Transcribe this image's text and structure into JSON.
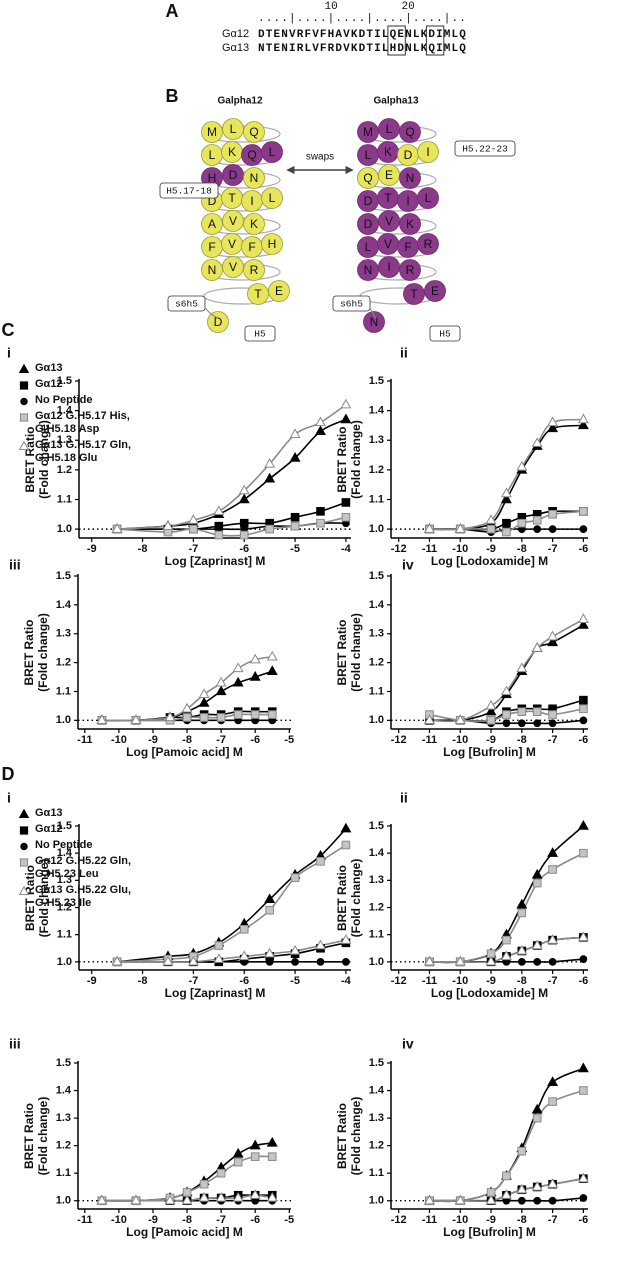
{
  "panel_a": {
    "label": "A",
    "ruler": "....|....|....|....|....|..",
    "ruler_labels": [
      "10",
      "20"
    ],
    "rows": [
      {
        "name": "Gα12",
        "sequence": "DTENVRFVFHAVKDTILQENLKDIMLQ"
      },
      {
        "name": "Gα13",
        "sequence": "NTENIRLVFRDVKDTILHDNLKQIMLQ"
      }
    ]
  },
  "panel_b": {
    "label": "B",
    "swaps": "swaps",
    "tags": [
      "H5.17-18",
      "H5.22-23",
      "s6h5",
      "s6h5",
      "H5",
      "H5"
    ],
    "wheels": [
      {
        "title": "Galpha12",
        "rows": [
          [
            "M",
            "L",
            "Q"
          ],
          [
            "L",
            "K",
            "Q",
            "L"
          ],
          [
            "H",
            "D",
            "N"
          ],
          [
            "D",
            "T",
            "I",
            "L"
          ],
          [
            "A",
            "V",
            "K"
          ],
          [
            "F",
            "V",
            "F",
            "H"
          ],
          [
            "N",
            "V",
            "R"
          ],
          [
            "T",
            "E"
          ],
          [
            "D"
          ]
        ]
      },
      {
        "title": "Galpha13",
        "rows": [
          [
            "M",
            "L",
            "Q"
          ],
          [
            "L",
            "K",
            "D",
            "I"
          ],
          [
            "Q",
            "E",
            "N"
          ],
          [
            "D",
            "T",
            "I",
            "L"
          ],
          [
            "D",
            "V",
            "K"
          ],
          [
            "L",
            "V",
            "F",
            "R"
          ],
          [
            "N",
            "I",
            "R"
          ],
          [
            "T",
            "E"
          ],
          [
            "N"
          ]
        ]
      }
    ]
  },
  "panel_c": {
    "label": "C"
  },
  "panel_d": {
    "label": "D"
  },
  "chart_data": [
    {
      "type": "line",
      "label": "i",
      "ylabel": [
        "BRET Ratio",
        "(Fold change)"
      ],
      "xlabel": "Log [Zaprinast] M",
      "x": [
        -8.5,
        -7.5,
        -7,
        -6.5,
        -6,
        -5.5,
        -5,
        -4.5,
        -4
      ],
      "xlim": [
        -9.25,
        -3.9
      ],
      "xticks": [
        -9,
        -8,
        -7,
        -6,
        -5,
        -4
      ],
      "ylim": [
        0.97,
        1.5
      ],
      "yticks": [
        {
          "value": 1,
          "label": "1.0"
        },
        1.1,
        1.2,
        1.3,
        1.4,
        1.5
      ],
      "hline": 1,
      "legend": "upper-left",
      "series": [
        {
          "name": "Gα13",
          "marker": "triangle",
          "color": "#000000",
          "fill": "#000000",
          "values": [
            1.0,
            1.01,
            1.02,
            1.05,
            1.1,
            1.17,
            1.24,
            1.33,
            1.37
          ]
        },
        {
          "name": "Gα12",
          "marker": "square",
          "color": "#000000",
          "fill": "#000000",
          "values": [
            1.0,
            1.0,
            1.0,
            1.01,
            1.02,
            1.02,
            1.04,
            1.06,
            1.09
          ]
        },
        {
          "name": "No Peptide",
          "marker": "circle",
          "color": "#000000",
          "fill": "#000000",
          "values": [
            1.0,
            1.0,
            1.0,
            1.0,
            1.0,
            1.01,
            1.01,
            1.02,
            1.02
          ]
        },
        {
          "name": "Gα12 G.H5.17 His, G.H5.18 Asp",
          "marker": "square",
          "color": "#8a8a8a",
          "fill": "#c4c4c4",
          "values": [
            1.0,
            0.99,
            1.0,
            0.98,
            0.98,
            1.0,
            1.01,
            1.02,
            1.04
          ]
        },
        {
          "name": "Gα13 G.H5.17 Gln, G.H5.18 Glu",
          "marker": "triangle",
          "color": "#8a8a8a",
          "fill": "#ffffff",
          "values": [
            1.0,
            1.01,
            1.03,
            1.06,
            1.13,
            1.22,
            1.32,
            1.36,
            1.42
          ]
        }
      ]
    },
    {
      "type": "line",
      "label": "ii",
      "ylabel": [
        "BRET Ratio",
        "(Fold change)"
      ],
      "xlabel": "Log [Lodoxamide] M",
      "x": [
        -11,
        -10,
        -9,
        -8.5,
        -8,
        -7.5,
        -7,
        -6
      ],
      "xlim": [
        -12.25,
        -5.85
      ],
      "xticks": [
        -12,
        -11,
        -10,
        -9,
        -8,
        -7,
        -6
      ],
      "ylim": [
        0.97,
        1.5
      ],
      "yticks": [
        {
          "value": 1,
          "label": "1.0"
        },
        1.1,
        1.2,
        1.3,
        1.4,
        1.5
      ],
      "hline": 1,
      "series": [
        {
          "marker": "triangle",
          "color": "#000000",
          "fill": "#000000",
          "values": [
            1.0,
            1.0,
            1.02,
            1.1,
            1.2,
            1.28,
            1.34,
            1.35
          ]
        },
        {
          "marker": "square",
          "color": "#000000",
          "fill": "#000000",
          "values": [
            1.0,
            1.0,
            1.0,
            1.02,
            1.04,
            1.05,
            1.06,
            1.06
          ]
        },
        {
          "marker": "circle",
          "color": "#000000",
          "fill": "#000000",
          "values": [
            1.0,
            1.0,
            0.99,
            1.0,
            1.0,
            1.0,
            1.0,
            1.0
          ]
        },
        {
          "marker": "square",
          "color": "#8a8a8a",
          "fill": "#c4c4c4",
          "values": [
            1.0,
            1.0,
            1.0,
            0.99,
            1.02,
            1.03,
            1.05,
            1.06
          ]
        },
        {
          "marker": "triangle",
          "color": "#8a8a8a",
          "fill": "#ffffff",
          "values": [
            1.0,
            1.0,
            1.03,
            1.12,
            1.21,
            1.29,
            1.36,
            1.37
          ]
        }
      ]
    },
    {
      "type": "line",
      "label": "iii",
      "ylabel": [
        "BRET Ratio",
        "(Fold change)"
      ],
      "xlabel": "Log [Pamoic acid] M",
      "x": [
        -10.5,
        -9.5,
        -8.5,
        -8,
        -7.5,
        -7,
        -6.5,
        -6,
        -5.5
      ],
      "xlim": [
        -11.2,
        -4.95
      ],
      "xticks": [
        -11,
        -10,
        -9,
        -8,
        -7,
        -6,
        -5
      ],
      "ylim": [
        0.97,
        1.5
      ],
      "yticks": [
        {
          "value": 1,
          "label": "1.0"
        },
        1.1,
        1.2,
        1.3,
        1.4,
        1.5
      ],
      "hline": 1,
      "series": [
        {
          "marker": "triangle",
          "color": "#000000",
          "fill": "#000000",
          "values": [
            1.0,
            1.0,
            1.01,
            1.03,
            1.06,
            1.1,
            1.13,
            1.15,
            1.17
          ]
        },
        {
          "marker": "square",
          "color": "#000000",
          "fill": "#000000",
          "values": [
            1.0,
            1.0,
            1.01,
            1.01,
            1.02,
            1.02,
            1.03,
            1.03,
            1.03
          ]
        },
        {
          "marker": "circle",
          "color": "#000000",
          "fill": "#000000",
          "values": [
            1.0,
            1.0,
            1.0,
            1.0,
            1.0,
            1.0,
            1.0,
            1.0,
            1.0
          ]
        },
        {
          "marker": "square",
          "color": "#8a8a8a",
          "fill": "#c4c4c4",
          "values": [
            1.0,
            1.0,
            1.0,
            1.01,
            1.01,
            1.01,
            1.02,
            1.02,
            1.02
          ]
        },
        {
          "marker": "triangle",
          "color": "#8a8a8a",
          "fill": "#ffffff",
          "values": [
            1.0,
            1.0,
            1.01,
            1.04,
            1.09,
            1.13,
            1.18,
            1.21,
            1.22
          ]
        }
      ]
    },
    {
      "type": "line",
      "label": "iv",
      "ylabel": [
        "BRET Ratio",
        "(Fold change)"
      ],
      "xlabel": "Log [Bufrolin] M",
      "x": [
        -11,
        -10,
        -9,
        -8.5,
        -8,
        -7.5,
        -7,
        -6
      ],
      "xlim": [
        -12.25,
        -5.85
      ],
      "xticks": [
        -12,
        -11,
        -10,
        -9,
        -8,
        -7,
        -6
      ],
      "ylim": [
        0.97,
        1.5
      ],
      "yticks": [
        {
          "value": 1,
          "label": "1.0"
        },
        1.1,
        1.2,
        1.3,
        1.4,
        1.5
      ],
      "hline": 1,
      "series": [
        {
          "marker": "triangle",
          "color": "#000000",
          "fill": "#000000",
          "values": [
            1.0,
            1.0,
            1.03,
            1.09,
            1.17,
            1.25,
            1.27,
            1.33
          ]
        },
        {
          "marker": "square",
          "color": "#000000",
          "fill": "#000000",
          "values": [
            1.0,
            1.0,
            1.0,
            1.03,
            1.04,
            1.04,
            1.04,
            1.07
          ]
        },
        {
          "marker": "circle",
          "color": "#000000",
          "fill": "#000000",
          "values": [
            1.0,
            1.0,
            0.99,
            0.99,
            0.99,
            0.99,
            0.99,
            1.0
          ]
        },
        {
          "marker": "square",
          "color": "#8a8a8a",
          "fill": "#c4c4c4",
          "values": [
            1.02,
            1.0,
            1.0,
            1.02,
            1.03,
            1.03,
            1.02,
            1.04
          ]
        },
        {
          "marker": "triangle",
          "color": "#8a8a8a",
          "fill": "#ffffff",
          "values": [
            1.0,
            1.0,
            1.05,
            1.1,
            1.18,
            1.25,
            1.29,
            1.35
          ]
        }
      ]
    },
    {
      "type": "line",
      "label": "i",
      "ylabel": [
        "BRET Ratio",
        "(Fold change)"
      ],
      "xlabel": "Log [Zaprinast] M",
      "x": [
        -8.5,
        -7.5,
        -7,
        -6.5,
        -6,
        -5.5,
        -5,
        -4.5,
        -4
      ],
      "xlim": [
        -9.25,
        -3.9
      ],
      "xticks": [
        -9,
        -8,
        -7,
        -6,
        -5,
        -4
      ],
      "ylim": [
        0.97,
        1.5
      ],
      "yticks": [
        {
          "value": 1,
          "label": "1.0"
        },
        1.1,
        1.2,
        1.3,
        1.4,
        1.5
      ],
      "hline": 1,
      "legend": "upper-left",
      "series": [
        {
          "name": "Gα13",
          "marker": "triangle",
          "color": "#000000",
          "fill": "#000000",
          "values": [
            1.0,
            1.02,
            1.03,
            1.07,
            1.14,
            1.23,
            1.32,
            1.39,
            1.49
          ]
        },
        {
          "name": "Gα12",
          "marker": "square",
          "color": "#000000",
          "fill": "#000000",
          "values": [
            1.0,
            1.0,
            1.0,
            1.0,
            1.01,
            1.02,
            1.03,
            1.05,
            1.07
          ]
        },
        {
          "name": "No Peptide",
          "marker": "circle",
          "color": "#000000",
          "fill": "#000000",
          "values": [
            1.0,
            1.0,
            1.0,
            1.0,
            1.0,
            1.0,
            1.0,
            1.0,
            1.0
          ]
        },
        {
          "name": "Gα12 G.H5.22 Gln, G.H5.23 Leu",
          "marker": "square",
          "color": "#8a8a8a",
          "fill": "#c4c4c4",
          "values": [
            1.0,
            1.01,
            1.02,
            1.06,
            1.12,
            1.19,
            1.31,
            1.37,
            1.43
          ]
        },
        {
          "name": "Gα13 G.H5.22 Glu, G.H5.23 Ile",
          "marker": "triangle",
          "color": "#8a8a8a",
          "fill": "#ffffff",
          "values": [
            1.0,
            1.0,
            1.0,
            1.01,
            1.02,
            1.03,
            1.04,
            1.06,
            1.08
          ]
        }
      ]
    },
    {
      "type": "line",
      "label": "ii",
      "ylabel": [
        "BRET Ratio",
        "(Fold change)"
      ],
      "xlabel": "Log [Lodoxamide] M",
      "x": [
        -11,
        -10,
        -9,
        -8.5,
        -8,
        -7.5,
        -7,
        -6
      ],
      "xlim": [
        -12.25,
        -5.85
      ],
      "xticks": [
        -12,
        -11,
        -10,
        -9,
        -8,
        -7,
        -6
      ],
      "ylim": [
        0.97,
        1.5
      ],
      "yticks": [
        {
          "value": 1,
          "label": "1.0"
        },
        1.1,
        1.2,
        1.3,
        1.4,
        1.5
      ],
      "hline": 1,
      "series": [
        {
          "marker": "triangle",
          "color": "#000000",
          "fill": "#000000",
          "values": [
            1.0,
            1.0,
            1.03,
            1.1,
            1.21,
            1.32,
            1.4,
            1.5
          ]
        },
        {
          "marker": "square",
          "color": "#000000",
          "fill": "#000000",
          "values": [
            1.0,
            1.0,
            1.0,
            1.02,
            1.04,
            1.06,
            1.08,
            1.09
          ]
        },
        {
          "marker": "circle",
          "color": "#000000",
          "fill": "#000000",
          "values": [
            1.0,
            1.0,
            1.0,
            1.0,
            1.0,
            1.0,
            1.0,
            1.01
          ]
        },
        {
          "marker": "square",
          "color": "#8a8a8a",
          "fill": "#c4c4c4",
          "values": [
            1.0,
            1.0,
            1.03,
            1.08,
            1.18,
            1.29,
            1.34,
            1.4
          ]
        },
        {
          "marker": "triangle",
          "color": "#8a8a8a",
          "fill": "#ffffff",
          "values": [
            1.0,
            1.0,
            1.0,
            1.02,
            1.04,
            1.06,
            1.08,
            1.09
          ]
        }
      ]
    },
    {
      "type": "line",
      "label": "iii",
      "ylabel": [
        "BRET Ratio",
        "(Fold change)"
      ],
      "xlabel": "Log [Pamoic acid] M",
      "x": [
        -10.5,
        -9.5,
        -8.5,
        -8,
        -7.5,
        -7,
        -6.5,
        -6,
        -5.5
      ],
      "xlim": [
        -11.2,
        -4.95
      ],
      "xticks": [
        -11,
        -10,
        -9,
        -8,
        -7,
        -6,
        -5
      ],
      "ylim": [
        0.97,
        1.5
      ],
      "yticks": [
        {
          "value": 1,
          "label": "1.0"
        },
        1.1,
        1.2,
        1.3,
        1.4,
        1.5
      ],
      "hline": 1,
      "series": [
        {
          "marker": "triangle",
          "color": "#000000",
          "fill": "#000000",
          "values": [
            1.0,
            1.0,
            1.01,
            1.03,
            1.07,
            1.12,
            1.17,
            1.2,
            1.21
          ]
        },
        {
          "marker": "square",
          "color": "#000000",
          "fill": "#000000",
          "values": [
            1.0,
            1.0,
            1.0,
            1.0,
            1.01,
            1.01,
            1.02,
            1.02,
            1.02
          ]
        },
        {
          "marker": "circle",
          "color": "#000000",
          "fill": "#000000",
          "values": [
            1.0,
            1.0,
            1.0,
            1.0,
            1.0,
            1.0,
            1.0,
            1.0,
            1.0
          ]
        },
        {
          "marker": "square",
          "color": "#8a8a8a",
          "fill": "#c4c4c4",
          "values": [
            1.0,
            1.0,
            1.01,
            1.03,
            1.06,
            1.1,
            1.14,
            1.16,
            1.16
          ]
        },
        {
          "marker": "triangle",
          "color": "#8a8a8a",
          "fill": "#ffffff",
          "values": [
            1.0,
            1.0,
            1.0,
            1.0,
            1.01,
            1.01,
            1.01,
            1.02,
            1.01
          ]
        }
      ]
    },
    {
      "type": "line",
      "label": "iv",
      "ylabel": [
        "BRET Ratio",
        "(Fold change)"
      ],
      "xlabel": "Log [Bufrolin] M",
      "x": [
        -11,
        -10,
        -9,
        -8.5,
        -8,
        -7.5,
        -7,
        -6
      ],
      "xlim": [
        -12.25,
        -5.85
      ],
      "xticks": [
        -12,
        -11,
        -10,
        -9,
        -8,
        -7,
        -6
      ],
      "ylim": [
        0.97,
        1.5
      ],
      "yticks": [
        {
          "value": 1,
          "label": "1.0"
        },
        1.1,
        1.2,
        1.3,
        1.4,
        1.5
      ],
      "hline": 1,
      "series": [
        {
          "marker": "triangle",
          "color": "#000000",
          "fill": "#000000",
          "values": [
            1.0,
            1.0,
            1.03,
            1.09,
            1.19,
            1.33,
            1.43,
            1.48
          ]
        },
        {
          "marker": "square",
          "color": "#000000",
          "fill": "#000000",
          "values": [
            1.0,
            1.0,
            1.0,
            1.02,
            1.04,
            1.05,
            1.06,
            1.08
          ]
        },
        {
          "marker": "circle",
          "color": "#000000",
          "fill": "#000000",
          "values": [
            1.0,
            1.0,
            1.0,
            1.0,
            1.0,
            1.0,
            1.0,
            1.01
          ]
        },
        {
          "marker": "square",
          "color": "#8a8a8a",
          "fill": "#c4c4c4",
          "values": [
            1.0,
            1.0,
            1.03,
            1.09,
            1.18,
            1.3,
            1.36,
            1.4
          ]
        },
        {
          "marker": "triangle",
          "color": "#8a8a8a",
          "fill": "#ffffff",
          "values": [
            1.0,
            1.0,
            1.0,
            1.02,
            1.04,
            1.05,
            1.06,
            1.08
          ]
        }
      ]
    }
  ]
}
